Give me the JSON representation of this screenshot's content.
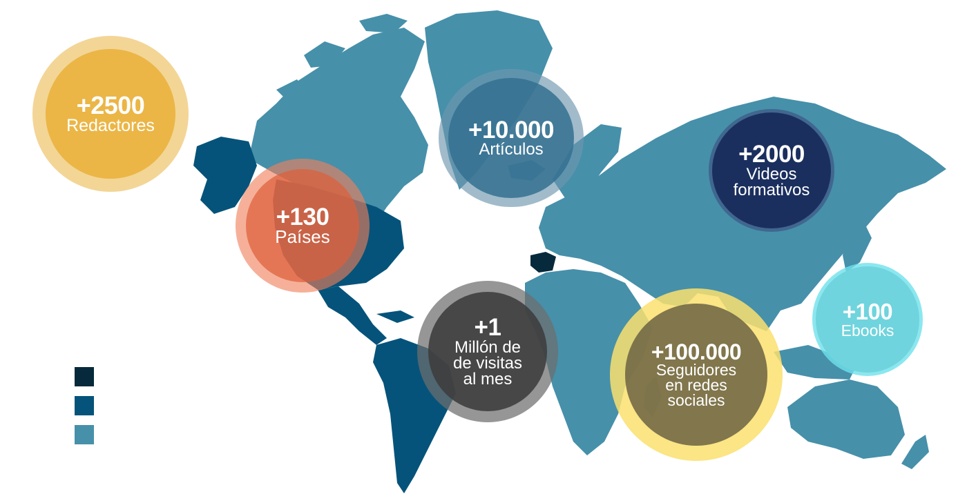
{
  "colors": {
    "spain": "#062a3c",
    "dark_region": "#05537a",
    "light_region": "#4690aa"
  },
  "stats": {
    "redactores": {
      "value": "+2500",
      "label": "Redactores"
    },
    "articulos": {
      "value": "+10.000",
      "label": "Artículos"
    },
    "paises": {
      "value": "+130",
      "label": "Países"
    },
    "videos": {
      "value": "+2000",
      "label": "Videos\nformativos"
    },
    "ebooks": {
      "value": "+100",
      "label": "Ebooks"
    },
    "visitas": {
      "value": "+1",
      "label": "Millón de\nde visitas\nal mes"
    },
    "seguidores": {
      "value": "+100.000",
      "label": "Seguidores\nen redes\nsociales"
    }
  },
  "legend": {
    "items": [
      {
        "color": "#062a3c"
      },
      {
        "color": "#05537a"
      },
      {
        "color": "#4690aa"
      }
    ]
  }
}
